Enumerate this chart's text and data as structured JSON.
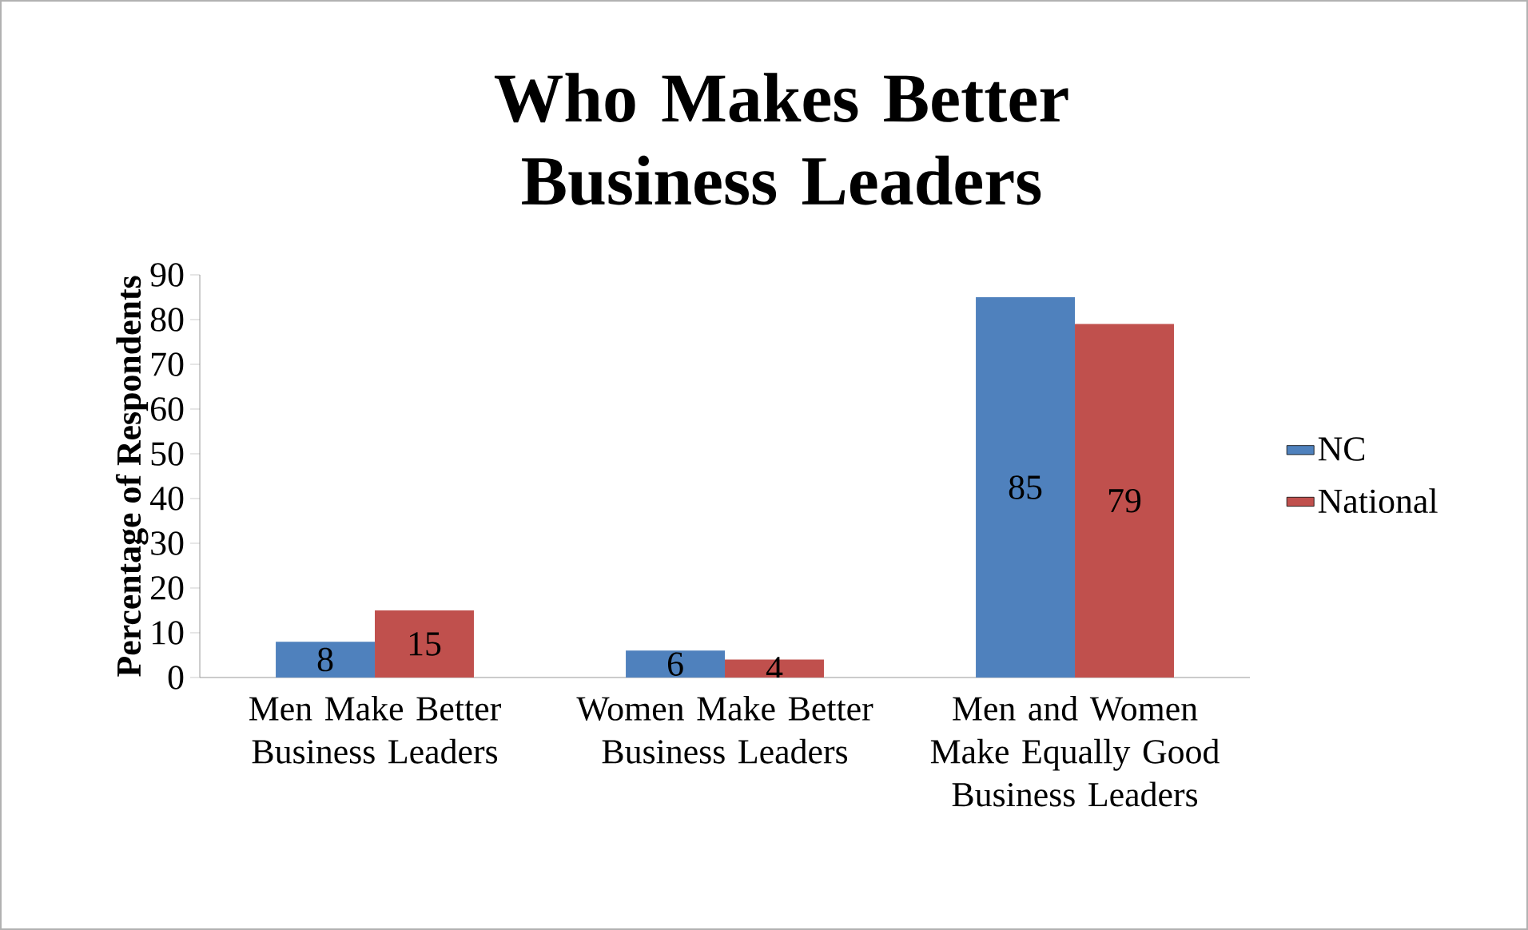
{
  "chart_data": {
    "type": "bar",
    "title": "Who Makes Better Business Leaders",
    "ylabel": "Percentage of Respondents",
    "categories": [
      "Men Make Better Business Leaders",
      "Women Make Better Business Leaders",
      "Men and Women Make Equally Good Business Leaders"
    ],
    "series": [
      {
        "name": "NC",
        "color": "#4f81bd",
        "values": [
          8,
          6,
          85
        ]
      },
      {
        "name": "National",
        "color": "#c0504d",
        "values": [
          15,
          4,
          79
        ]
      }
    ],
    "ylim": [
      0,
      90
    ],
    "yticks": [
      0,
      10,
      20,
      30,
      40,
      50,
      60,
      70,
      80,
      90
    ],
    "data_labels": true,
    "legend": "right"
  }
}
